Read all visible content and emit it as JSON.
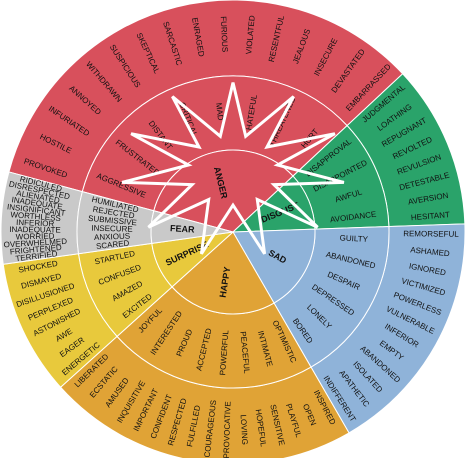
{
  "colors": {
    "anger": "#d8505c",
    "disgust": "#2aa36a",
    "sad": "#8fb3d9",
    "happy": "#e0a336",
    "surprise": "#e8c93c",
    "fear": "#c9c9c9",
    "ring_line": "#ffffff",
    "star": "#ffffff"
  },
  "sections": [
    {
      "core": "ANGER",
      "color_key": "anger",
      "secondary": [
        "AGGRESSIVE",
        "FRUSTRATED",
        "DISTANT",
        "CRITICAL",
        "MAD",
        "HATEFUL",
        "THREATENED",
        "HURT"
      ],
      "outer": [
        "PROVOKED",
        "HOSTILE",
        "INFURIATED",
        "ANNOYED",
        "WITHDRAWN",
        "SUSPICIOUS",
        "SKEPTICAL",
        "SARCASTIC",
        "ENRAGED",
        "FURIOUS",
        "VIOLATED",
        "RESENTFUL",
        "JEALOUS",
        "INSECURE",
        "DEVASTATED",
        "EMBARRASSED"
      ]
    },
    {
      "core": "DISGUST",
      "color_key": "disgust",
      "secondary": [
        "DISAPPROVAL",
        "DISAPPOINTED",
        "AWFUL",
        "AVOIDANCE"
      ],
      "outer": [
        "JUDGMENTAL",
        "LOATHING",
        "REPUGNANT",
        "REVOLTED",
        "REVULSION",
        "DETESTABLE",
        "AVERSION",
        "HESITANT"
      ]
    },
    {
      "core": "SAD",
      "color_key": "sad",
      "secondary": [
        "GUILTY",
        "ABANDONED",
        "DESPAIR",
        "DEPRESSED",
        "LONELY",
        "BORED"
      ],
      "outer": [
        "REMORSEFUL",
        "ASHAMED",
        "IGNORED",
        "VICTIMIZED",
        "POWERLESS",
        "VULNERABLE",
        "INFERIOR",
        "EMPTY",
        "ABANDONED",
        "ISOLATED",
        "APATHETIC",
        "INDIFFERENT"
      ]
    },
    {
      "core": "HAPPY",
      "color_key": "happy",
      "secondary": [
        "OPTIMISTIC",
        "INTIMATE",
        "PEACEFUL",
        "POWERFUL",
        "ACCEPTED",
        "PROUD",
        "INTERESTED",
        "JOYFUL"
      ],
      "outer": [
        "INSPIRED",
        "OPEN",
        "PLAYFUL",
        "SENSITIVE",
        "HOPEFUL",
        "LOVING",
        "PROVOCATIVE",
        "COURAGEOUS",
        "FULFILLED",
        "RESPECTED",
        "CONFIDENT",
        "IMPORTANT",
        "INQUISITIVE",
        "AMUSED",
        "ECSTATIC",
        "LIBERATED"
      ]
    },
    {
      "core": "SURPRISE",
      "color_key": "surprise",
      "secondary": [
        "EXCITED",
        "AMAZED",
        "CONFUSED",
        "STARTLED"
      ],
      "outer": [
        "ENERGETIC",
        "EAGER",
        "AWE",
        "ASTONISHED",
        "PERPLEXED",
        "DISILLUSIONED",
        "DISMAYED",
        "SHOCKED"
      ]
    },
    {
      "core": "FEAR",
      "color_key": "fear",
      "secondary": [
        "SCARED",
        "ANXIOUS",
        "INSECURE",
        "SUBMISSIVE",
        "REJECTED",
        "HUMILIATED"
      ],
      "outer": [
        "TERRIFIED",
        "FRIGHTENED",
        "OVERWHELMED",
        "WORRIED",
        "INADEQUATE",
        "INFERIOR",
        "WORTHLESS",
        "INSIGNIFICANT",
        "INADEQUATE",
        "ALIENATED",
        "DISRESPECTED",
        "RIDICULED"
      ]
    }
  ]
}
